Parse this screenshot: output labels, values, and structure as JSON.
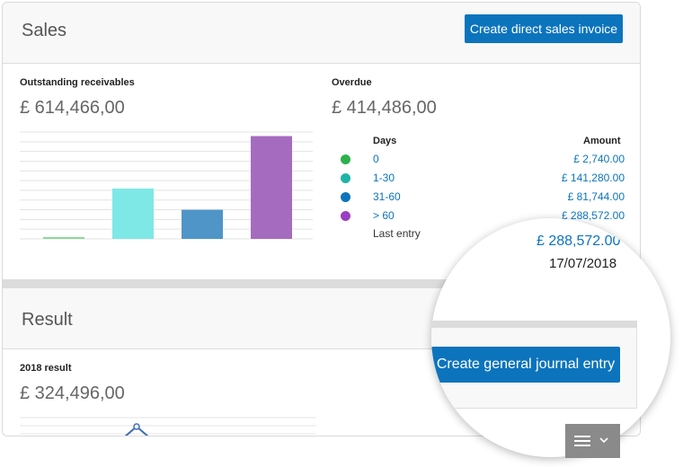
{
  "sales": {
    "title": "Sales",
    "create_invoice_label": "Create direct sales invoice",
    "outstanding_label": "Outstanding receivables",
    "outstanding_amount": "£ 614,466,00",
    "overdue_label": "Overdue",
    "overdue_amount": "£ 414,486,00",
    "aging_headers": {
      "days": "Days",
      "amount": "Amount"
    },
    "aging_rows": [
      {
        "days": "0",
        "amount": "£ 2,740.00",
        "color": "#2bb24c"
      },
      {
        "days": "1-30",
        "amount": "£ 141,280.00",
        "color": "#1fb5a6"
      },
      {
        "days": "31-60",
        "amount": "£ 81,744.00",
        "color": "#0c74bd"
      },
      {
        "days": "> 60",
        "amount": "£ 288,572.00",
        "color": "#9b3fc0"
      }
    ],
    "last_entry_label": "Last entry"
  },
  "chart_data": {
    "type": "bar",
    "categories": [
      "0",
      "1-30",
      "31-60",
      "> 60"
    ],
    "values": [
      2740,
      141280,
      81744,
      288572
    ],
    "colors": [
      "#8dd99a",
      "#7ee8e6",
      "#4f95c8",
      "#a56bbf"
    ],
    "ylim": [
      0,
      300000
    ],
    "grid": true
  },
  "magnifier": {
    "amount": "£ 288,572.00",
    "date": "17/07/2018",
    "create_journal_label": "Create general journal entry"
  },
  "result": {
    "title": "Result",
    "year_label": "2018 result",
    "amount": "£ 324,496,00"
  },
  "colors": {
    "accent": "#0c74bd"
  }
}
